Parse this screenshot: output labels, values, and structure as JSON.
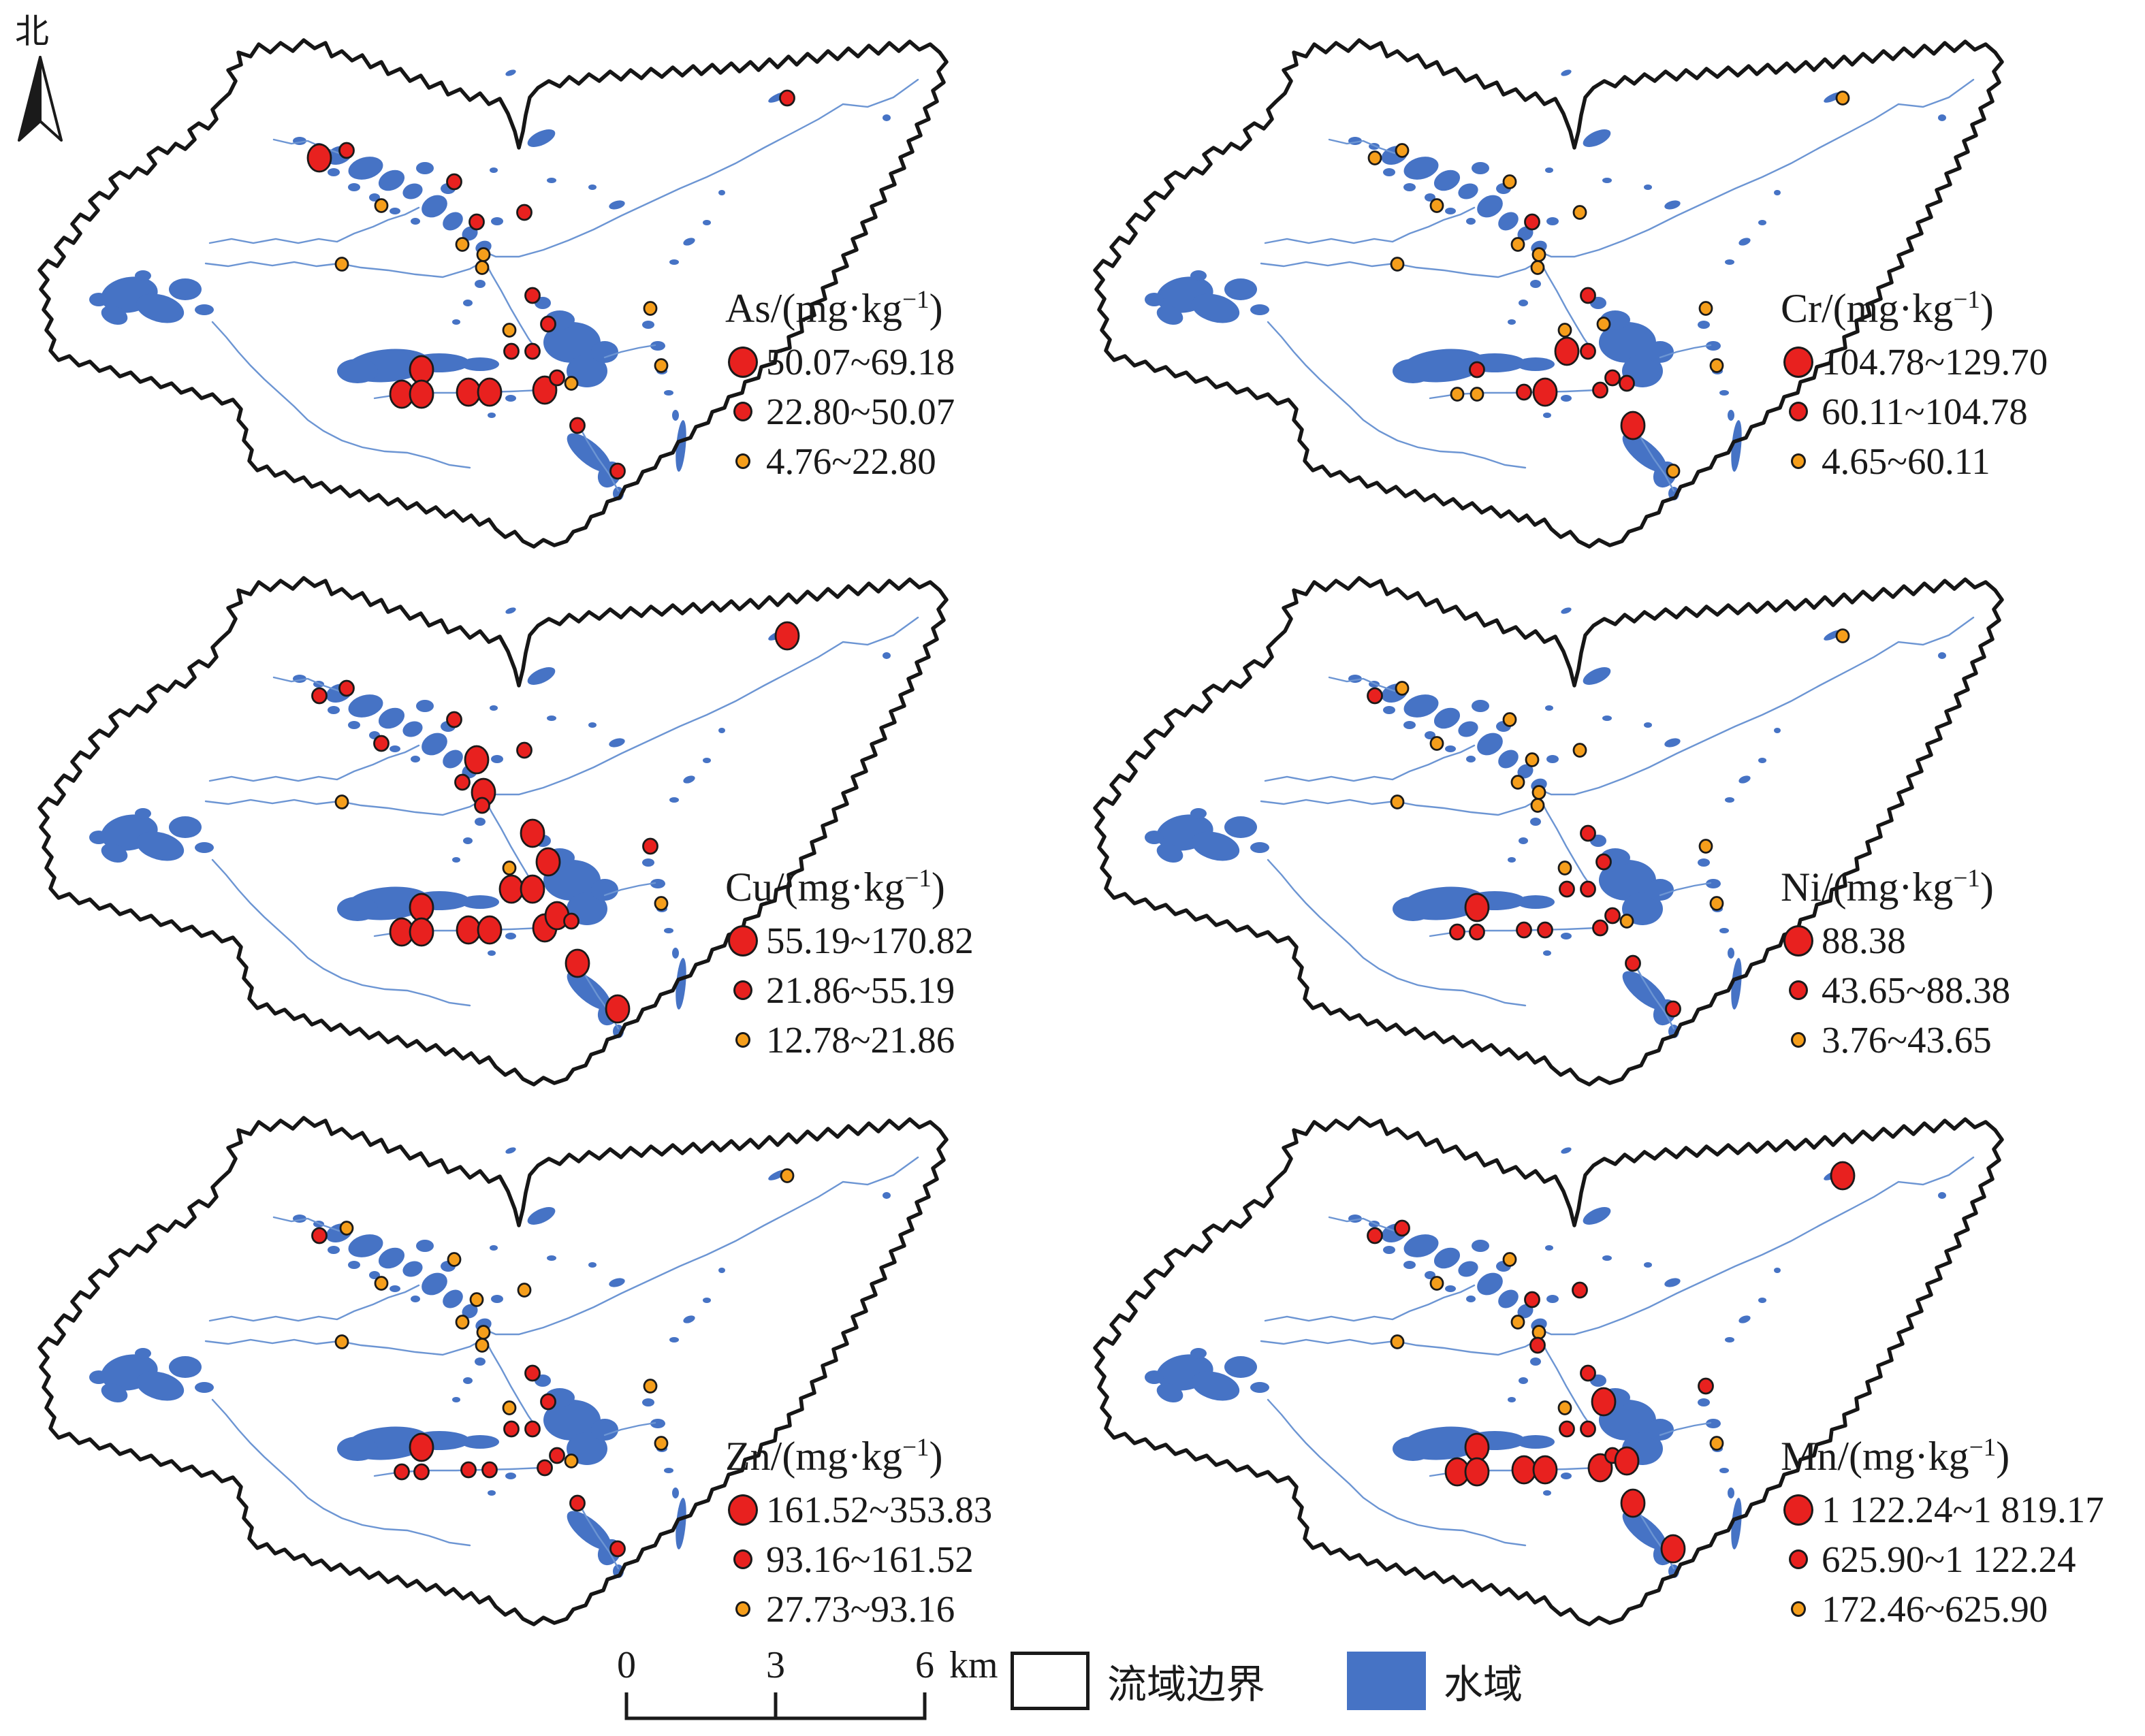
{
  "compass": {
    "label": "北"
  },
  "unit_sup": "−1",
  "panels": [
    {
      "metal": "As",
      "title_pre": "As/(mg·kg",
      "title_post": ")",
      "items": [
        {
          "level": "high",
          "range": "50.07~69.18"
        },
        {
          "level": "mid",
          "range": "22.80~50.07"
        },
        {
          "level": "low",
          "range": "4.76~22.80"
        }
      ]
    },
    {
      "metal": "Cr",
      "title_pre": "Cr/(mg·kg",
      "title_post": ")",
      "items": [
        {
          "level": "high",
          "range": "104.78~129.70"
        },
        {
          "level": "mid",
          "range": "60.11~104.78"
        },
        {
          "level": "low",
          "range": "4.65~60.11"
        }
      ]
    },
    {
      "metal": "Cu",
      "title_pre": "Cu/(mg·kg",
      "title_post": ")",
      "items": [
        {
          "level": "high",
          "range": "55.19~170.82"
        },
        {
          "level": "mid",
          "range": "21.86~55.19"
        },
        {
          "level": "low",
          "range": "12.78~21.86"
        }
      ]
    },
    {
      "metal": "Ni",
      "title_pre": "Ni/(mg·kg",
      "title_post": ")",
      "items": [
        {
          "level": "high",
          "range": "88.38"
        },
        {
          "level": "mid",
          "range": "43.65~88.38"
        },
        {
          "level": "low",
          "range": "3.76~43.65"
        }
      ]
    },
    {
      "metal": "Zn",
      "title_pre": "Zn/(mg·kg",
      "title_post": ")",
      "items": [
        {
          "level": "high",
          "range": "161.52~353.83"
        },
        {
          "level": "mid",
          "range": "93.16~161.52"
        },
        {
          "level": "low",
          "range": "27.73~93.16"
        }
      ]
    },
    {
      "metal": "Mn",
      "title_pre": "Mn/(mg·kg",
      "title_post": ")",
      "items": [
        {
          "level": "high",
          "range": "1 122.24~1 819.17"
        },
        {
          "level": "mid",
          "range": "625.90~1 122.24"
        },
        {
          "level": "low",
          "range": "172.46~625.90"
        }
      ]
    }
  ],
  "footer": {
    "scale_ticks": [
      "0",
      "3",
      "6"
    ],
    "scale_unit": "km",
    "boundary_label": "流域边界",
    "water_label": "水域"
  },
  "colors": {
    "red": "#E8211F",
    "orange": "#F59E1B",
    "water": "#4673C5",
    "river": "#6C95D3",
    "boundary": "#161616"
  },
  "chart_data": {
    "type": "scatter",
    "title": "Spatial distribution of heavy metal concentrations in watershed sediments (six thematic maps)",
    "legend_position": "right-inside each map",
    "class_meaning": {
      "h": "high — large red circle",
      "m": "middle — small red circle",
      "l": "low — small orange circle"
    },
    "sites": [
      [
        419,
        207
      ],
      [
        459,
        196
      ],
      [
        617,
        242
      ],
      [
        1106,
        119
      ],
      [
        720,
        287
      ],
      [
        650,
        301
      ],
      [
        510,
        277
      ],
      [
        629,
        334
      ],
      [
        660,
        349
      ],
      [
        658,
        368
      ],
      [
        452,
        363
      ],
      [
        732,
        409
      ],
      [
        905,
        428
      ],
      [
        755,
        451
      ],
      [
        698,
        460
      ],
      [
        701,
        491
      ],
      [
        732,
        491
      ],
      [
        921,
        512
      ],
      [
        569,
        518
      ],
      [
        540,
        554
      ],
      [
        569,
        554
      ],
      [
        638,
        551
      ],
      [
        669,
        551
      ],
      [
        750,
        548
      ],
      [
        768,
        530
      ],
      [
        789,
        538
      ],
      [
        798,
        600
      ],
      [
        857,
        667
      ]
    ],
    "series": [
      {
        "name": "As",
        "unit": "mg·kg−1",
        "bins": {
          "h": "50.07~69.18",
          "m": "22.80~50.07",
          "l": "4.76~22.80"
        },
        "classes": [
          "h",
          "m",
          "m",
          "m",
          "m",
          "m",
          "l",
          "l",
          "l",
          "l",
          "l",
          "m",
          "l",
          "m",
          "l",
          "m",
          "m",
          "l",
          "h",
          "h",
          "h",
          "h",
          "h",
          "h",
          "m",
          "l",
          "m",
          "m"
        ]
      },
      {
        "name": "Cr",
        "unit": "mg·kg−1",
        "bins": {
          "h": "104.78~129.70",
          "m": "60.11~104.78",
          "l": "4.65~60.11"
        },
        "classes": [
          "l",
          "l",
          "l",
          "l",
          "l",
          "m",
          "l",
          "l",
          "l",
          "l",
          "l",
          "m",
          "l",
          "l",
          "l",
          "h",
          "m",
          "l",
          "m",
          "l",
          "l",
          "m",
          "h",
          "m",
          "m",
          "m",
          "h",
          "l"
        ]
      },
      {
        "name": "Cu",
        "unit": "mg·kg−1",
        "bins": {
          "h": "55.19~170.82",
          "m": "21.86~55.19",
          "l": "12.78~21.86"
        },
        "classes": [
          "m",
          "m",
          "m",
          "h",
          "m",
          "h",
          "m",
          "m",
          "h",
          "m",
          "l",
          "h",
          "m",
          "h",
          "l",
          "h",
          "h",
          "l",
          "h",
          "h",
          "h",
          "h",
          "h",
          "h",
          "h",
          "m",
          "h",
          "h"
        ]
      },
      {
        "name": "Ni",
        "unit": "mg·kg−1",
        "bins": {
          "h": "88.38",
          "m": "43.65~88.38",
          "l": "3.76~43.65"
        },
        "classes": [
          "m",
          "l",
          "l",
          "l",
          "l",
          "l",
          "l",
          "l",
          "l",
          "l",
          "l",
          "m",
          "l",
          "m",
          "l",
          "m",
          "m",
          "l",
          "h",
          "m",
          "m",
          "m",
          "m",
          "m",
          "m",
          "l",
          "m",
          "m"
        ]
      },
      {
        "name": "Zn",
        "unit": "mg·kg−1",
        "bins": {
          "h": "161.52~353.83",
          "m": "93.16~161.52",
          "l": "27.73~93.16"
        },
        "classes": [
          "m",
          "l",
          "l",
          "l",
          "l",
          "l",
          "l",
          "l",
          "l",
          "l",
          "l",
          "m",
          "l",
          "m",
          "l",
          "m",
          "m",
          "l",
          "h",
          "m",
          "m",
          "m",
          "m",
          "m",
          "m",
          "l",
          "m",
          "m"
        ]
      },
      {
        "name": "Mn",
        "unit": "mg·kg−1",
        "bins": {
          "h": "1 122.24~1 819.17",
          "m": "625.90~1 122.24",
          "l": "172.46~625.90"
        },
        "classes": [
          "m",
          "m",
          "l",
          "h",
          "m",
          "m",
          "l",
          "l",
          "l",
          "m",
          "l",
          "m",
          "m",
          "h",
          "l",
          "m",
          "m",
          "l",
          "h",
          "h",
          "h",
          "h",
          "h",
          "h",
          "m",
          "h",
          "h",
          "h"
        ]
      }
    ]
  }
}
